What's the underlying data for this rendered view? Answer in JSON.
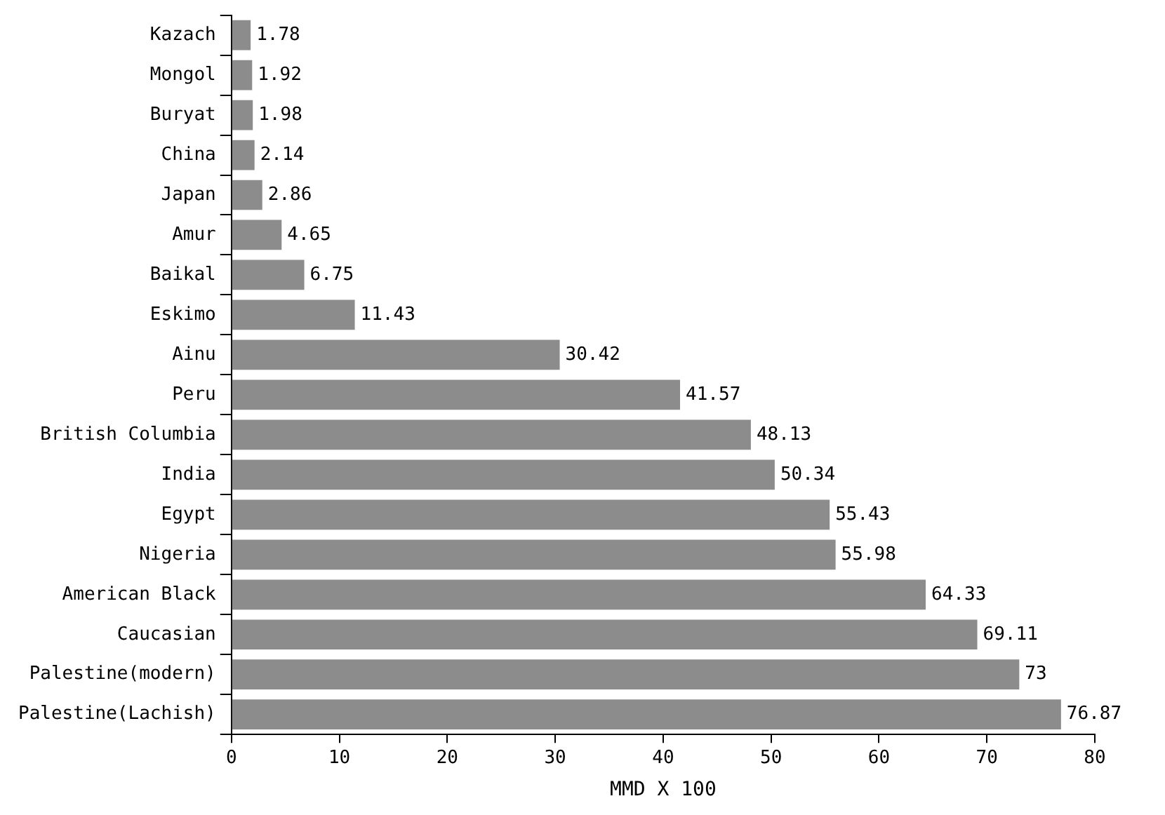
{
  "chart_data": {
    "type": "bar",
    "orientation": "horizontal",
    "xlabel": "MMD X 100",
    "categories": [
      "Kazach",
      "Mongol",
      "Buryat",
      "China",
      "Japan",
      "Amur",
      "Baikal",
      "Eskimo",
      "Ainu",
      "Peru",
      "British Columbia",
      "India",
      "Egypt",
      "Nigeria",
      "American Black",
      "Caucasian",
      "Palestine(modern)",
      "Palestine(Lachish)"
    ],
    "values": [
      1.78,
      1.92,
      1.98,
      2.14,
      2.86,
      4.65,
      6.75,
      11.43,
      30.42,
      41.57,
      48.13,
      50.34,
      55.43,
      55.98,
      64.33,
      69.11,
      73,
      76.87
    ],
    "color": "#8c8c8c",
    "xlim": [
      0,
      80
    ],
    "xticks": [
      0,
      10,
      20,
      30,
      40,
      50,
      60,
      70,
      80
    ],
    "data_labels": true,
    "grid": false,
    "legend": false
  }
}
